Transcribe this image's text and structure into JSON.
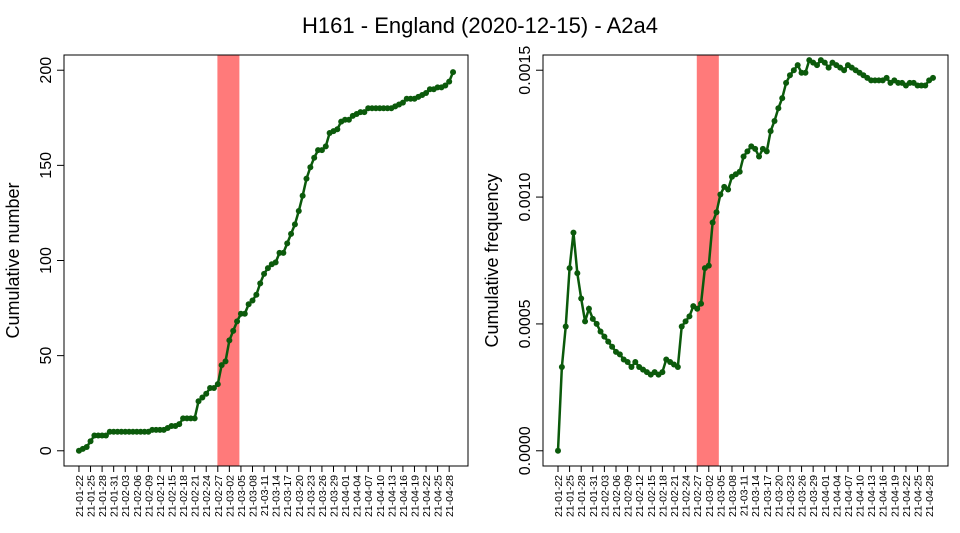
{
  "title": "H161 - England (2020-12-15) - A2a4",
  "chart_data": [
    {
      "type": "line",
      "ylabel": "Cumulative number",
      "color": "#0b5a0b",
      "shade": [
        35.9,
        41.6
      ],
      "shade_color": "#ff7a7a",
      "categories": [
        "21-01-22",
        null,
        null,
        "21-01-25",
        null,
        null,
        "21-01-28",
        null,
        null,
        "21-01-31",
        null,
        null,
        "21-02-03",
        null,
        null,
        "21-02-06",
        null,
        null,
        "21-02-09",
        null,
        null,
        "21-02-12",
        null,
        null,
        "21-02-15",
        null,
        null,
        "21-02-18",
        null,
        null,
        "21-02-21",
        null,
        null,
        "21-02-24",
        null,
        null,
        "21-02-27",
        null,
        null,
        "21-03-02",
        null,
        null,
        "21-03-05",
        null,
        null,
        "21-03-08",
        null,
        null,
        "21-03-11",
        null,
        null,
        "21-03-14",
        null,
        null,
        "21-03-17",
        null,
        null,
        "21-03-20",
        null,
        null,
        "21-03-23",
        null,
        null,
        "21-03-26",
        null,
        null,
        "21-03-29",
        null,
        null,
        "21-04-01",
        null,
        null,
        "21-04-04",
        null,
        null,
        "21-04-07",
        null,
        null,
        "21-04-10",
        null,
        null,
        "21-04-13",
        null,
        null,
        "21-04-16",
        null,
        null,
        "21-04-19",
        null,
        null,
        "21-04-22",
        null,
        null,
        "21-04-25",
        null,
        null,
        "21-04-28",
        null
      ],
      "values": [
        0,
        1,
        2,
        5,
        8,
        8,
        8,
        8,
        10,
        10,
        10,
        10,
        10,
        10,
        10,
        10,
        10,
        10,
        10,
        11,
        11,
        11,
        11,
        12,
        13,
        13,
        14,
        17,
        17,
        17,
        17,
        26,
        28,
        30,
        33,
        33,
        35,
        45,
        47,
        58,
        63,
        68,
        72,
        72,
        77,
        79,
        82,
        88,
        93,
        96,
        98,
        99,
        104,
        104,
        109,
        114,
        119,
        126,
        134,
        143,
        149,
        154,
        158,
        158,
        160,
        167,
        168,
        169,
        173,
        174,
        174,
        176,
        177,
        178,
        178,
        180,
        180,
        180,
        180,
        180,
        180,
        180,
        181,
        182,
        183,
        185,
        185,
        185,
        186,
        187,
        188,
        190,
        190,
        191,
        191,
        192,
        194,
        199
      ],
      "ylim": [
        -8,
        208
      ],
      "yticks": [
        0,
        50,
        100,
        150,
        200
      ]
    },
    {
      "type": "line",
      "ylabel": "Cumulative frequency",
      "color": "#0b5a0b",
      "shade": [
        35.9,
        41.6
      ],
      "shade_color": "#ff7a7a",
      "categories": [
        "21-01-22",
        null,
        null,
        "21-01-25",
        null,
        null,
        "21-01-28",
        null,
        null,
        "21-01-31",
        null,
        null,
        "21-02-03",
        null,
        null,
        "21-02-06",
        null,
        null,
        "21-02-09",
        null,
        null,
        "21-02-12",
        null,
        null,
        "21-02-15",
        null,
        null,
        "21-02-18",
        null,
        null,
        "21-02-21",
        null,
        null,
        "21-02-24",
        null,
        null,
        "21-02-27",
        null,
        null,
        "21-03-02",
        null,
        null,
        "21-03-05",
        null,
        null,
        "21-03-08",
        null,
        null,
        "21-03-11",
        null,
        null,
        "21-03-14",
        null,
        null,
        "21-03-17",
        null,
        null,
        "21-03-20",
        null,
        null,
        "21-03-23",
        null,
        null,
        "21-03-26",
        null,
        null,
        "21-03-29",
        null,
        null,
        "21-04-01",
        null,
        null,
        "21-04-04",
        null,
        null,
        "21-04-07",
        null,
        null,
        "21-04-10",
        null,
        null,
        "21-04-13",
        null,
        null,
        "21-04-16",
        null,
        null,
        "21-04-19",
        null,
        null,
        "21-04-22",
        null,
        null,
        "21-04-25",
        null,
        null,
        "21-04-28",
        null
      ],
      "values": [
        0,
        0.00033,
        0.00049,
        0.00072,
        0.00086,
        0.0007,
        0.0006,
        0.00051,
        0.00056,
        0.00052,
        0.0005,
        0.00047,
        0.00045,
        0.00043,
        0.00041,
        0.00039,
        0.00038,
        0.00036,
        0.00035,
        0.00033,
        0.00035,
        0.00033,
        0.00032,
        0.00031,
        0.0003,
        0.00031,
        0.0003,
        0.00031,
        0.00036,
        0.00035,
        0.00034,
        0.00033,
        0.00049,
        0.00051,
        0.00053,
        0.00057,
        0.00056,
        0.00058,
        0.00072,
        0.00073,
        0.0009,
        0.00094,
        0.00101,
        0.00104,
        0.00103,
        0.00108,
        0.00109,
        0.0011,
        0.00116,
        0.00118,
        0.0012,
        0.00119,
        0.00116,
        0.00119,
        0.00118,
        0.00126,
        0.0013,
        0.00135,
        0.00139,
        0.00145,
        0.00148,
        0.0015,
        0.00152,
        0.00149,
        0.00149,
        0.00154,
        0.00153,
        0.00152,
        0.00154,
        0.00153,
        0.00151,
        0.00153,
        0.00152,
        0.00151,
        0.0015,
        0.00152,
        0.00151,
        0.0015,
        0.00149,
        0.00148,
        0.00147,
        0.00146,
        0.00146,
        0.00146,
        0.00146,
        0.00147,
        0.00145,
        0.00146,
        0.00145,
        0.00145,
        0.00144,
        0.00145,
        0.00145,
        0.00144,
        0.00144,
        0.00144,
        0.00146,
        0.00147
      ],
      "ylim": [
        -6e-05,
        0.00156
      ],
      "yticks": [
        {
          "value": 0,
          "label": "0.0000"
        },
        {
          "value": 0.0005,
          "label": "0.0005"
        },
        {
          "value": 0.001,
          "label": "0.0010"
        },
        {
          "value": 0.0015,
          "label": "0.0015"
        }
      ]
    }
  ]
}
